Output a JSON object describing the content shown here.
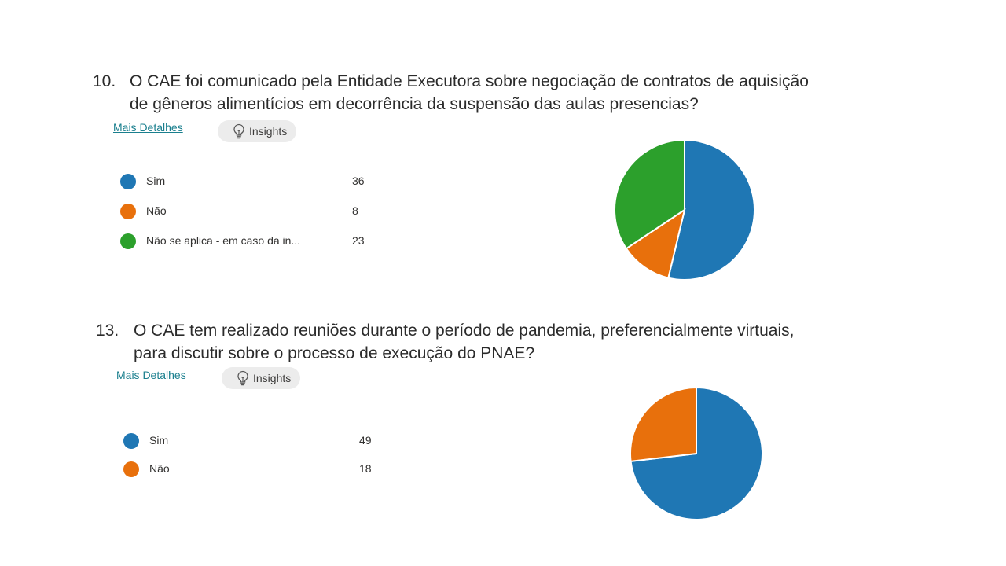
{
  "questions": [
    {
      "number": "10.",
      "title_lines": [
        "O CAE foi comunicado pela Entidade Executora sobre negociação de contratos de aquisição",
        "de gêneros alimentícios em decorrência da suspensão das aulas presencias?"
      ],
      "details_label": "Mais Detalhes",
      "insights_label": "Insights",
      "insights_icon": "lightbulb-icon",
      "legend": [
        {
          "label": "Sim",
          "count": "36",
          "color": "#1f77b4"
        },
        {
          "label": "Não",
          "count": "8",
          "color": "#e8700c"
        },
        {
          "label": "Não se aplica - em caso da in...",
          "count": "23",
          "color": "#2ca02c"
        }
      ],
      "chart_data": {
        "type": "pie",
        "categories": [
          "Sim",
          "Não",
          "Não se aplica - em caso da in..."
        ],
        "values": [
          36,
          8,
          23
        ],
        "colors": [
          "#1f77b4",
          "#e8700c",
          "#2ca02c"
        ],
        "start": "12 o'clock",
        "direction": "clockwise"
      }
    },
    {
      "number": "13.",
      "title_lines": [
        "O CAE tem realizado reuniões durante o período de pandemia, preferencialmente virtuais,",
        "para discutir sobre o processo de execução do PNAE?"
      ],
      "details_label": "Mais Detalhes",
      "insights_label": "Insights",
      "insights_icon": "lightbulb-icon",
      "legend": [
        {
          "label": "Sim",
          "count": "49",
          "color": "#1f77b4"
        },
        {
          "label": "Não",
          "count": "18",
          "color": "#e8700c"
        }
      ],
      "chart_data": {
        "type": "pie",
        "categories": [
          "Sim",
          "Não"
        ],
        "values": [
          49,
          18
        ],
        "colors": [
          "#1f77b4",
          "#e8700c"
        ],
        "start": "12 o'clock",
        "direction": "clockwise"
      }
    }
  ]
}
